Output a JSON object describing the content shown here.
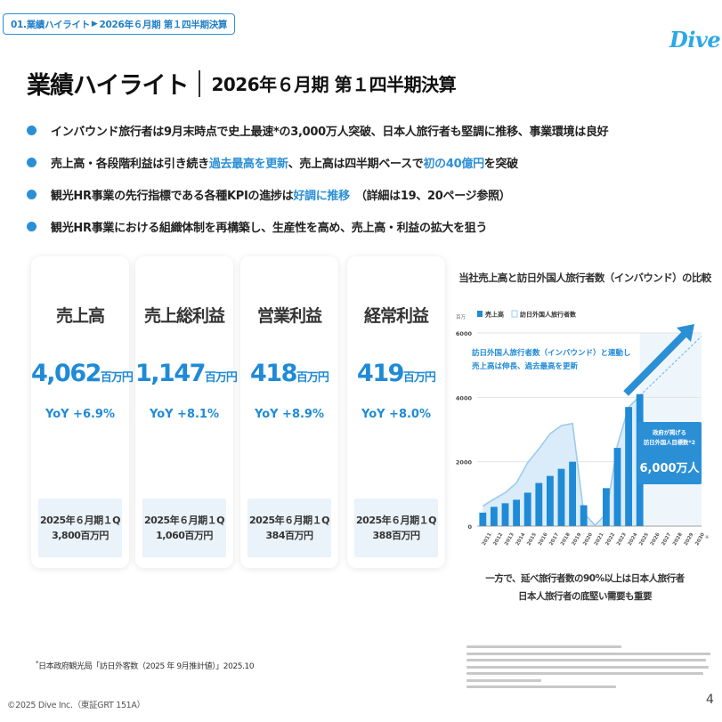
{
  "breadcrumb": {
    "section": "01.業績ハイライト",
    "page": "2026年６月期 第１四半期決算"
  },
  "logo": "Dive",
  "title": {
    "main": "業績ハイライト",
    "sub": "2026年６月期 第１四半期決算"
  },
  "bullets": [
    {
      "pre": "インバウンド旅行者は9月末時点で史上最速*の3,000万人突破、日本人旅行者も堅調に推移、事業環境は良好"
    },
    {
      "pre": "売上高・各段階利益は引き続き",
      "hl1": "過去最高を更新",
      "mid": "、売上高は四半期ベースで",
      "hl2": "初の40億円",
      "post": "を突破"
    },
    {
      "pre": "観光HR事業の先行指標である各種KPIの進捗は",
      "hl1": "好調に推移",
      "post": "　（詳細は19、20ページ参照）"
    },
    {
      "pre": "観光HR事業における組織体制を再構築し、生産性を高め、売上高・利益の拡大を狙う"
    }
  ],
  "cards": [
    {
      "title": "売上高",
      "value": "4,062",
      "unit": "百万円",
      "yoy": "YoY +6.9%",
      "prev_period": "2025年６月期１Q",
      "prev_value": "3,800百万円"
    },
    {
      "title": "売上総利益",
      "value": "1,147",
      "unit": "百万円",
      "yoy": "YoY +8.1%",
      "prev_period": "2025年６月期１Q",
      "prev_value": "1,060百万円"
    },
    {
      "title": "営業利益",
      "value": "418",
      "unit": "百万円",
      "yoy": "YoY +8.9%",
      "prev_period": "2025年６月期１Q",
      "prev_value": "384百万円"
    },
    {
      "title": "経常利益",
      "value": "419",
      "unit": "百万円",
      "yoy": "YoY +8.0%",
      "prev_period": "2025年６月期１Q",
      "prev_value": "388百万円"
    }
  ],
  "chart_data": {
    "type": "bar",
    "title": "当社売上高と訪日外国人旅行者数（インバウンド）の比較",
    "ylabel": "百万",
    "ylim": [
      0,
      6000
    ],
    "yticks": [
      0,
      2000,
      4000,
      6000
    ],
    "categories": [
      "2011",
      "2012",
      "2013",
      "2014",
      "2015",
      "2016",
      "2017",
      "2018",
      "2019",
      "2020",
      "2021",
      "2022",
      "2023",
      "2024",
      "2025",
      "2026",
      "2027",
      "2028",
      "2029",
      "2030"
    ],
    "series": [
      {
        "name": "売上高",
        "kind": "bar",
        "values": [
          420,
          600,
          710,
          820,
          1040,
          1340,
          1560,
          1780,
          2000,
          650,
          0,
          1180,
          2430,
          3700,
          4100,
          null,
          null,
          null,
          null,
          null
        ]
      },
      {
        "name": "訪日外国人旅行者数",
        "kind": "area",
        "values": [
          620,
          840,
          1040,
          1340,
          1970,
          2400,
          2870,
          3120,
          3190,
          410,
          30,
          380,
          2510,
          3690,
          4050,
          null,
          null,
          null,
          null,
          6000
        ]
      }
    ],
    "annotations": [
      {
        "text_lines": [
          "訪日外国人旅行者数（インバウンド）と連動し",
          "売上高は伸長、過去最高を更新"
        ]
      },
      {
        "text_lines": [
          "政府が掲げる",
          "訪日外国人目標数*2"
        ],
        "value": "6,000万人"
      }
    ],
    "x_suffix": "※",
    "colors": {
      "bar": "#1f8ad6",
      "area": "#d6eaf8",
      "line": "#9ccbec",
      "arrow": "#2b8fd6"
    }
  },
  "chart_note": {
    "line1": "一方で、延べ旅行者数の90%以上は日本人旅行者",
    "line2": "日本人旅行者の底堅い需要も重要"
  },
  "footnote": {
    "mark": "*",
    "text": "日本政府観光局「訪日外客数（2025 年 9月推計値）」2025.10"
  },
  "copyright": "©2025 Dive Inc.（東証GRT 151A）",
  "page_number": "4"
}
